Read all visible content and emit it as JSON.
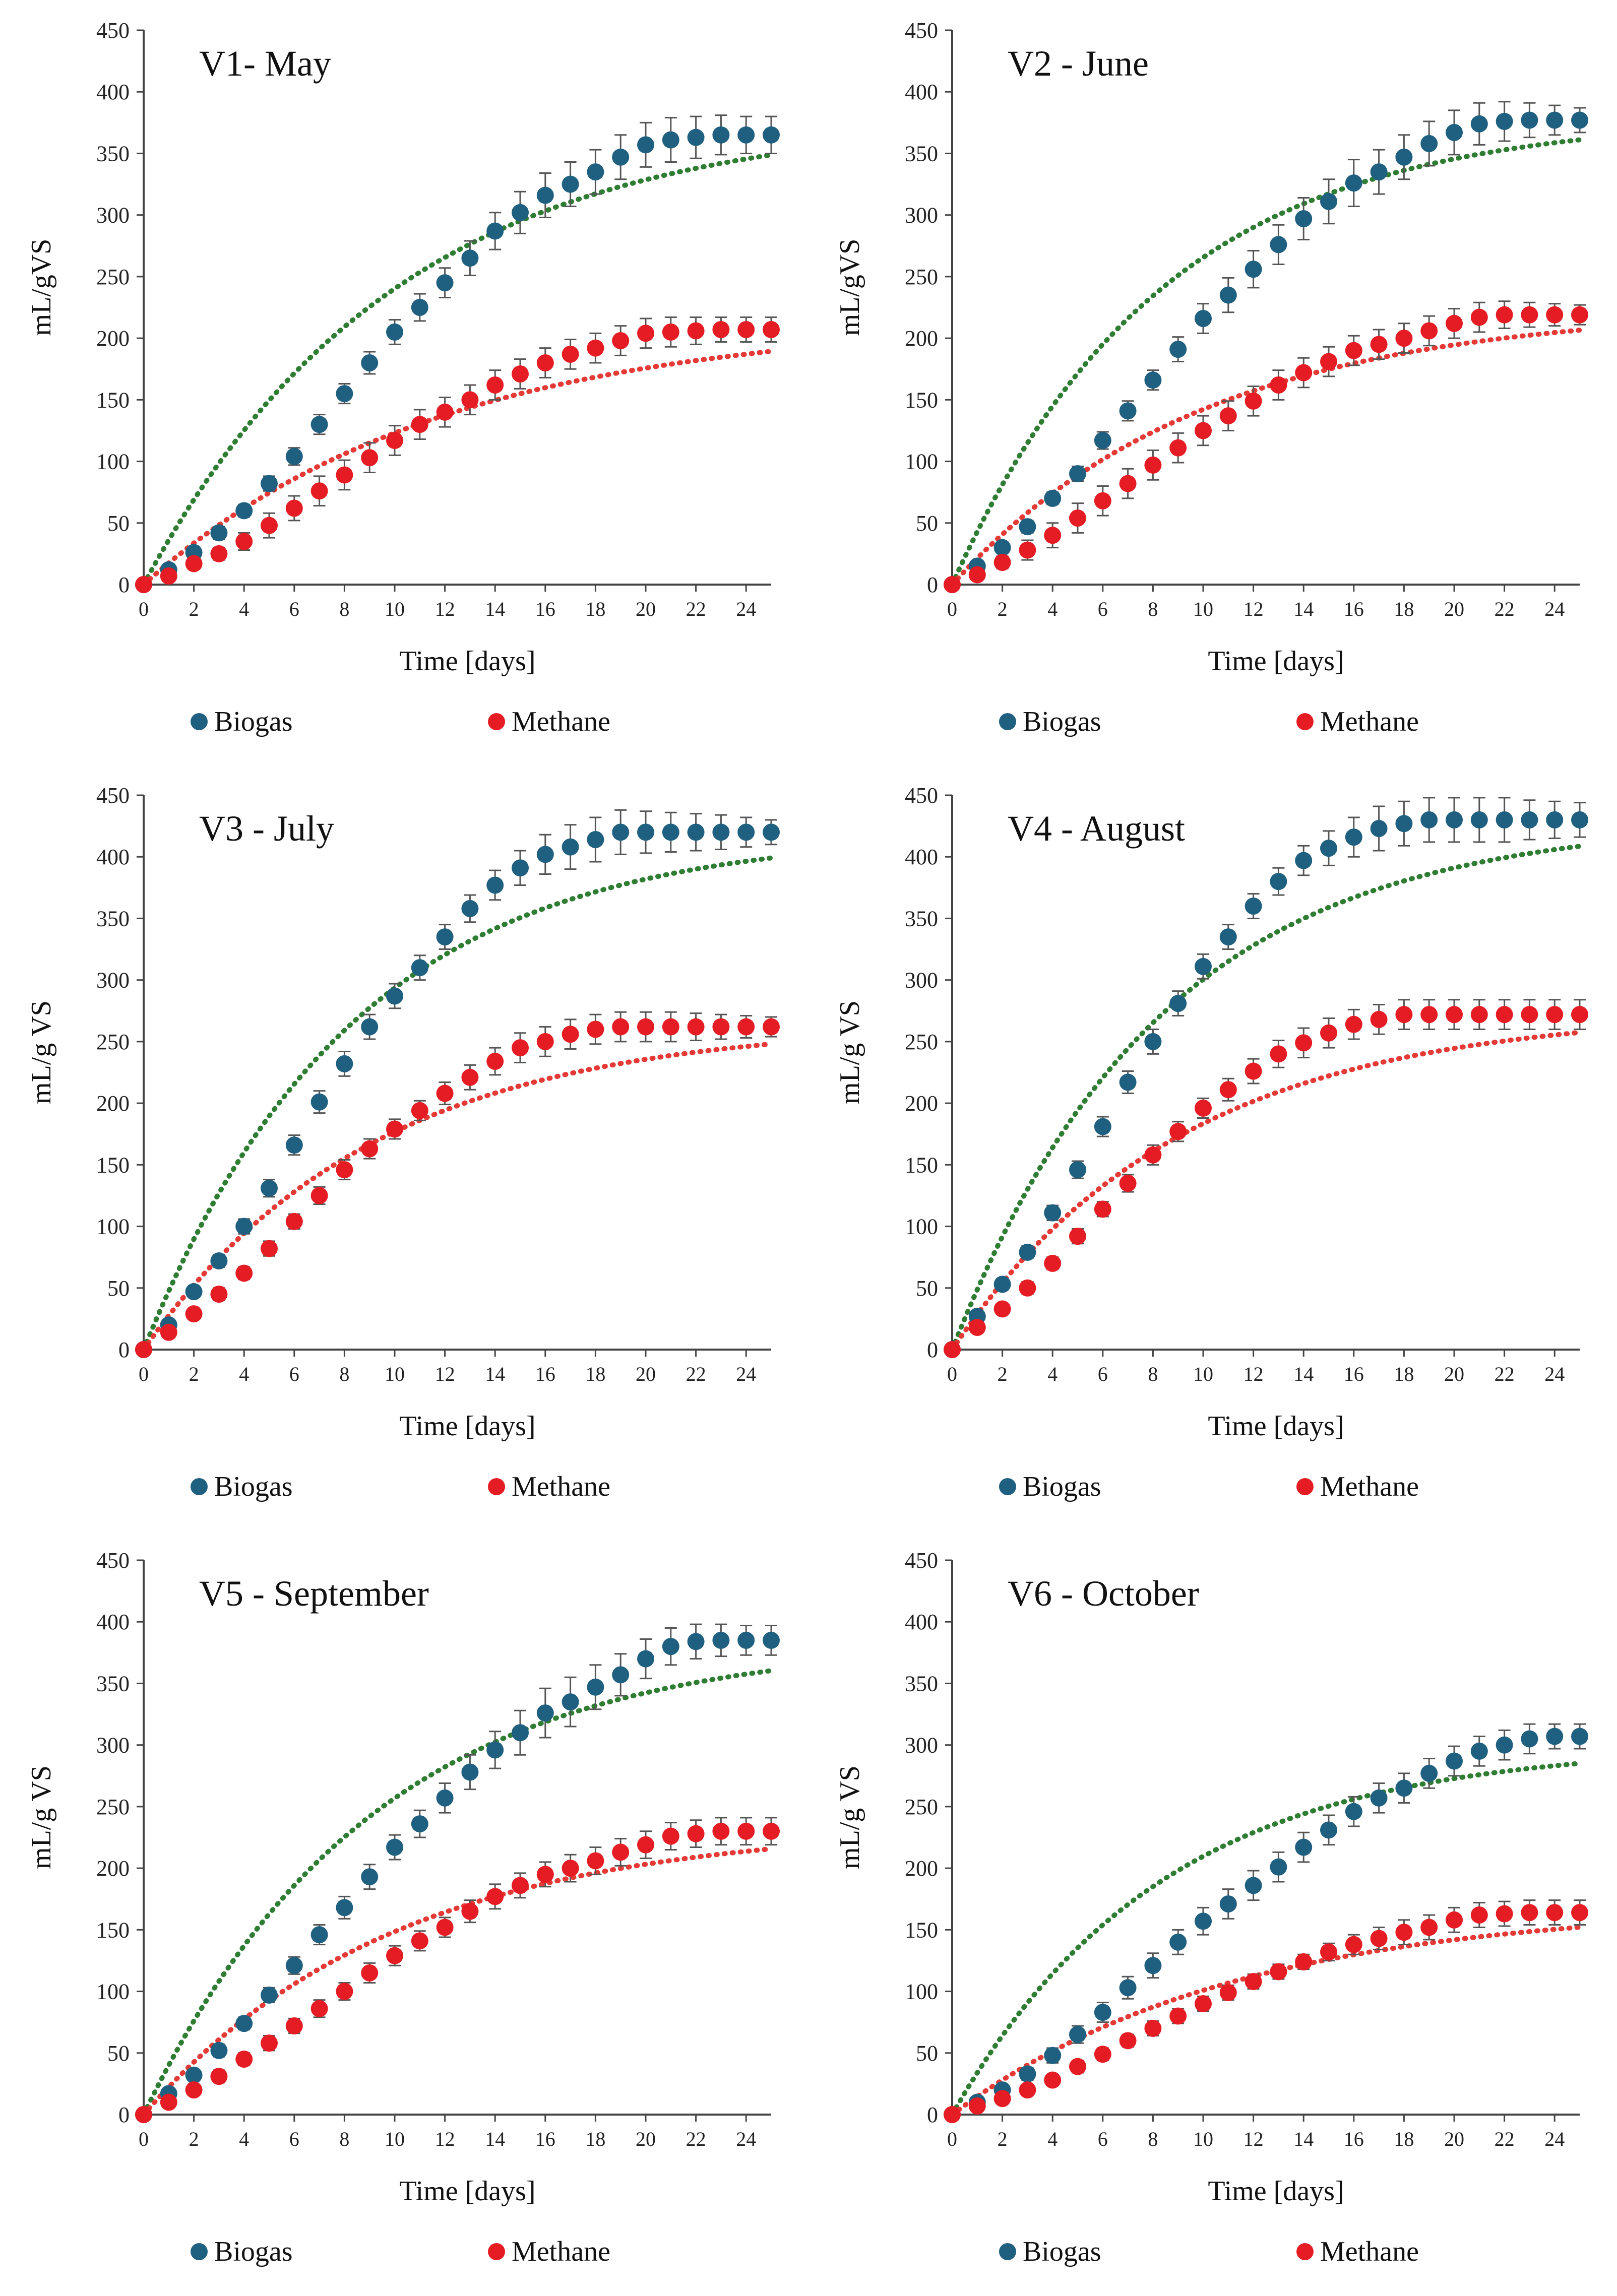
{
  "colors": {
    "biogas": "#1f5f7f",
    "methane": "#e51c23",
    "biogas_model": "#2e7d32",
    "methane_model": "#e53935",
    "error_bar": "#555555",
    "axis": "#444444"
  },
  "legend": {
    "biogas": "Biogas",
    "methane": "Methane"
  },
  "chart_data": [
    {
      "type": "scatter",
      "title": "V1- May",
      "xlabel": "Time [days]",
      "ylabel": "mL/gVS",
      "xlim": [
        0,
        25
      ],
      "ylim": [
        0,
        450
      ],
      "xticks": [
        0,
        2,
        4,
        6,
        8,
        10,
        12,
        14,
        16,
        18,
        20,
        22,
        24
      ],
      "yticks": [
        0,
        50,
        100,
        150,
        200,
        250,
        300,
        350,
        400,
        450
      ],
      "x": [
        0,
        1,
        2,
        3,
        4,
        5,
        6,
        7,
        8,
        9,
        10,
        11,
        12,
        13,
        14,
        15,
        16,
        17,
        18,
        19,
        20,
        21,
        22,
        23,
        24,
        25
      ],
      "series": [
        {
          "name": "Biogas",
          "values": [
            0,
            12,
            26,
            42,
            60,
            82,
            104,
            130,
            155,
            180,
            205,
            225,
            245,
            265,
            287,
            302,
            316,
            325,
            335,
            347,
            357,
            361,
            363,
            365,
            365,
            365
          ],
          "error": [
            0,
            3,
            4,
            5,
            5,
            6,
            7,
            8,
            8,
            9,
            10,
            11,
            12,
            14,
            15,
            17,
            18,
            18,
            18,
            18,
            18,
            18,
            17,
            16,
            15,
            15
          ],
          "model_max": 380,
          "model_k": 0.1
        },
        {
          "name": "Methane",
          "values": [
            0,
            7,
            17,
            25,
            35,
            48,
            62,
            76,
            89,
            103,
            117,
            130,
            140,
            150,
            162,
            171,
            180,
            187,
            192,
            198,
            204,
            205,
            206,
            207,
            207,
            207
          ],
          "error": [
            0,
            3,
            4,
            5,
            7,
            10,
            10,
            12,
            12,
            12,
            12,
            12,
            12,
            12,
            12,
            12,
            12,
            12,
            12,
            12,
            12,
            12,
            11,
            10,
            10,
            10
          ],
          "model_max": 215,
          "model_k": 0.085
        }
      ]
    },
    {
      "type": "scatter",
      "title": "V2 - June",
      "xlabel": "Time [days]",
      "ylabel": "mL/gVS",
      "xlim": [
        0,
        25
      ],
      "ylim": [
        0,
        450
      ],
      "xticks": [
        0,
        2,
        4,
        6,
        8,
        10,
        12,
        14,
        16,
        18,
        20,
        22,
        24
      ],
      "yticks": [
        0,
        50,
        100,
        150,
        200,
        250,
        300,
        350,
        400,
        450
      ],
      "x": [
        0,
        1,
        2,
        3,
        4,
        5,
        6,
        7,
        8,
        9,
        10,
        11,
        12,
        13,
        14,
        15,
        16,
        17,
        18,
        19,
        20,
        21,
        22,
        23,
        24,
        25
      ],
      "series": [
        {
          "name": "Biogas",
          "values": [
            0,
            15,
            30,
            47,
            70,
            90,
            117,
            141,
            166,
            191,
            216,
            235,
            256,
            276,
            297,
            311,
            326,
            335,
            347,
            358,
            367,
            374,
            376,
            377,
            377,
            377
          ],
          "error": [
            0,
            3,
            4,
            5,
            5,
            6,
            7,
            8,
            8,
            10,
            12,
            14,
            15,
            16,
            17,
            18,
            19,
            18,
            18,
            18,
            18,
            17,
            16,
            14,
            12,
            10
          ],
          "model_max": 380,
          "model_k": 0.12
        },
        {
          "name": "Methane",
          "values": [
            0,
            8,
            18,
            28,
            40,
            54,
            68,
            82,
            97,
            111,
            125,
            137,
            149,
            162,
            172,
            181,
            190,
            195,
            200,
            206,
            212,
            217,
            219,
            219,
            219,
            219
          ],
          "error": [
            0,
            3,
            5,
            8,
            10,
            12,
            12,
            12,
            12,
            12,
            12,
            12,
            12,
            12,
            12,
            12,
            12,
            12,
            12,
            12,
            12,
            12,
            11,
            10,
            9,
            8
          ],
          "model_max": 225,
          "model_k": 0.1
        }
      ]
    },
    {
      "type": "scatter",
      "title": "V3 - July",
      "xlabel": "Time [days]",
      "ylabel": "mL/g VS",
      "xlim": [
        0,
        25
      ],
      "ylim": [
        0,
        450
      ],
      "xticks": [
        0,
        2,
        4,
        6,
        8,
        10,
        12,
        14,
        16,
        18,
        20,
        22,
        24
      ],
      "yticks": [
        0,
        50,
        100,
        150,
        200,
        250,
        300,
        350,
        400,
        450
      ],
      "x": [
        0,
        1,
        2,
        3,
        4,
        5,
        6,
        7,
        8,
        9,
        10,
        11,
        12,
        13,
        14,
        15,
        16,
        17,
        18,
        19,
        20,
        21,
        22,
        23,
        24,
        25
      ],
      "series": [
        {
          "name": "Biogas",
          "values": [
            0,
            20,
            47,
            72,
            100,
            131,
            166,
            201,
            232,
            262,
            287,
            310,
            335,
            358,
            377,
            391,
            402,
            408,
            414,
            420,
            420,
            420,
            420,
            420,
            420,
            420
          ],
          "error": [
            0,
            3,
            4,
            5,
            6,
            7,
            8,
            9,
            10,
            10,
            10,
            10,
            10,
            11,
            12,
            14,
            16,
            18,
            18,
            18,
            17,
            16,
            15,
            14,
            12,
            10
          ],
          "model_max": 420,
          "model_k": 0.12
        },
        {
          "name": "Methane",
          "values": [
            0,
            14,
            29,
            45,
            62,
            82,
            104,
            125,
            146,
            163,
            179,
            194,
            208,
            221,
            234,
            245,
            250,
            256,
            260,
            262,
            262,
            262,
            262,
            262,
            262,
            262
          ],
          "error": [
            0,
            3,
            4,
            5,
            5,
            6,
            6,
            7,
            8,
            8,
            8,
            8,
            9,
            10,
            11,
            12,
            12,
            12,
            12,
            12,
            12,
            12,
            11,
            10,
            9,
            8
          ],
          "model_max": 265,
          "model_k": 0.11
        }
      ]
    },
    {
      "type": "scatter",
      "title": "V4 - August",
      "xlabel": "Time [days]",
      "ylabel": "mL/g VS",
      "xlim": [
        0,
        25
      ],
      "ylim": [
        0,
        450
      ],
      "xticks": [
        0,
        2,
        4,
        6,
        8,
        10,
        12,
        14,
        16,
        18,
        20,
        22,
        24
      ],
      "yticks": [
        0,
        50,
        100,
        150,
        200,
        250,
        300,
        350,
        400,
        450
      ],
      "x": [
        0,
        1,
        2,
        3,
        4,
        5,
        6,
        7,
        8,
        9,
        10,
        11,
        12,
        13,
        14,
        15,
        16,
        17,
        18,
        19,
        20,
        21,
        22,
        23,
        24,
        25
      ],
      "series": [
        {
          "name": "Biogas",
          "values": [
            0,
            27,
            53,
            79,
            111,
            146,
            181,
            217,
            250,
            281,
            311,
            335,
            360,
            380,
            397,
            407,
            416,
            423,
            427,
            430,
            430,
            430,
            430,
            430,
            430,
            430
          ],
          "error": [
            0,
            3,
            4,
            5,
            6,
            7,
            8,
            9,
            10,
            10,
            10,
            10,
            10,
            11,
            12,
            14,
            16,
            18,
            18,
            18,
            18,
            18,
            18,
            16,
            15,
            14
          ],
          "model_max": 430,
          "model_k": 0.12
        },
        {
          "name": "Methane",
          "values": [
            0,
            18,
            33,
            50,
            70,
            92,
            114,
            135,
            158,
            177,
            196,
            211,
            226,
            240,
            249,
            257,
            264,
            268,
            272,
            272,
            272,
            272,
            272,
            272,
            272,
            272
          ],
          "error": [
            0,
            3,
            4,
            5,
            5,
            6,
            6,
            7,
            8,
            8,
            8,
            9,
            10,
            11,
            12,
            12,
            12,
            12,
            12,
            12,
            12,
            12,
            12,
            12,
            12,
            12
          ],
          "model_max": 275,
          "model_k": 0.11
        }
      ]
    },
    {
      "type": "scatter",
      "title": "V5 - September",
      "xlabel": "Time [days]",
      "ylabel": "mL/g VS",
      "xlim": [
        0,
        25
      ],
      "ylim": [
        0,
        450
      ],
      "xticks": [
        0,
        2,
        4,
        6,
        8,
        10,
        12,
        14,
        16,
        18,
        20,
        22,
        24
      ],
      "yticks": [
        0,
        50,
        100,
        150,
        200,
        250,
        300,
        350,
        400,
        450
      ],
      "x": [
        0,
        1,
        2,
        3,
        4,
        5,
        6,
        7,
        8,
        9,
        10,
        11,
        12,
        13,
        14,
        15,
        16,
        17,
        18,
        19,
        20,
        21,
        22,
        23,
        24,
        25
      ],
      "series": [
        {
          "name": "Biogas",
          "values": [
            0,
            17,
            32,
            52,
            74,
            97,
            121,
            146,
            168,
            193,
            217,
            236,
            257,
            278,
            296,
            310,
            326,
            335,
            347,
            357,
            370,
            380,
            384,
            385,
            385,
            385
          ],
          "error": [
            0,
            3,
            4,
            5,
            5,
            6,
            7,
            8,
            9,
            10,
            10,
            11,
            12,
            14,
            15,
            18,
            20,
            20,
            18,
            17,
            16,
            15,
            14,
            13,
            12,
            12
          ],
          "model_max": 385,
          "model_k": 0.11
        },
        {
          "name": "Methane",
          "values": [
            0,
            10,
            20,
            31,
            45,
            58,
            72,
            86,
            100,
            115,
            129,
            141,
            152,
            165,
            177,
            186,
            195,
            200,
            206,
            213,
            219,
            226,
            228,
            230,
            230,
            230
          ],
          "error": [
            0,
            3,
            4,
            5,
            5,
            6,
            6,
            7,
            7,
            8,
            8,
            8,
            8,
            9,
            10,
            10,
            10,
            11,
            11,
            11,
            11,
            11,
            11,
            11,
            11,
            11
          ],
          "model_max": 235,
          "model_k": 0.1
        }
      ]
    },
    {
      "type": "scatter",
      "title": "V6 - October",
      "xlabel": "Time [days]",
      "ylabel": "mL/g VS",
      "xlim": [
        0,
        25
      ],
      "ylim": [
        0,
        450
      ],
      "xticks": [
        0,
        2,
        4,
        6,
        8,
        10,
        12,
        14,
        16,
        18,
        20,
        22,
        24
      ],
      "yticks": [
        0,
        50,
        100,
        150,
        200,
        250,
        300,
        350,
        400,
        450
      ],
      "x": [
        0,
        1,
        2,
        3,
        4,
        5,
        6,
        7,
        8,
        9,
        10,
        11,
        12,
        13,
        14,
        15,
        16,
        17,
        18,
        19,
        20,
        21,
        22,
        23,
        24,
        25
      ],
      "series": [
        {
          "name": "Biogas",
          "values": [
            0,
            10,
            20,
            33,
            48,
            65,
            83,
            103,
            121,
            140,
            157,
            171,
            186,
            201,
            217,
            231,
            246,
            257,
            265,
            277,
            287,
            295,
            300,
            305,
            307,
            307
          ],
          "error": [
            0,
            3,
            4,
            5,
            6,
            7,
            8,
            9,
            10,
            10,
            11,
            12,
            12,
            12,
            12,
            12,
            12,
            12,
            12,
            12,
            12,
            12,
            12,
            12,
            10,
            10
          ],
          "model_max": 300,
          "model_k": 0.12
        },
        {
          "name": "Methane",
          "values": [
            0,
            7,
            13,
            20,
            28,
            39,
            49,
            60,
            70,
            80,
            90,
            99,
            108,
            116,
            124,
            132,
            138,
            143,
            148,
            152,
            158,
            162,
            163,
            164,
            164,
            164
          ],
          "error": [
            0,
            3,
            3,
            4,
            4,
            5,
            5,
            5,
            6,
            6,
            6,
            6,
            6,
            6,
            6,
            7,
            8,
            9,
            10,
            10,
            10,
            10,
            10,
            10,
            10,
            10
          ],
          "model_max": 170,
          "model_k": 0.09
        }
      ]
    }
  ]
}
